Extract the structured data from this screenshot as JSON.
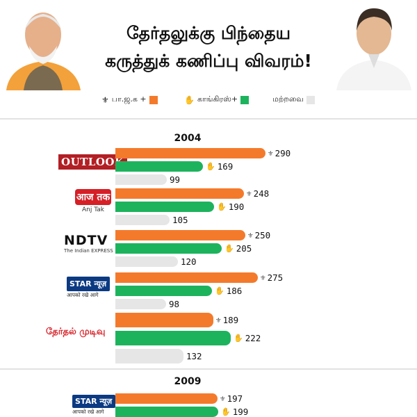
{
  "header": {
    "title_line1": "தேர்தலுக்கு பிந்தைய",
    "title_line2": "கருத்துக் கணிப்பு விவரம்!"
  },
  "legend": [
    {
      "label": "பா.ஜ.க +",
      "color": "#f47a2b",
      "icon": "lotus-icon"
    },
    {
      "label": "காங்கிரஸ்+",
      "color": "#1db35d",
      "icon": "hand-icon"
    },
    {
      "label": "மற்றவை",
      "color": "#e6e6e6",
      "icon": ""
    }
  ],
  "logos": {
    "outlook": "OUTLOOK",
    "aajtak": "आज तक",
    "aajtak_caption": "Anj Tak",
    "ndtv": "NDTV",
    "ndtv_caption": "The Indian EXPRESS",
    "star": "STAR न्यूज़",
    "star_caption": "आपको रखे आगे",
    "result": "தேர்தல் முடிவு"
  },
  "chart_data": [
    {
      "type": "bar",
      "title": "2004",
      "series_colors": [
        "#f47a2b",
        "#1db35d",
        "#e6e6e6"
      ],
      "groups": [
        {
          "source": "OUTLOOK",
          "values": [
            290,
            169,
            99
          ]
        },
        {
          "source": "Aaj Tak",
          "values": [
            248,
            190,
            105
          ]
        },
        {
          "source": "NDTV",
          "values": [
            250,
            205,
            120
          ]
        },
        {
          "source": "STAR News",
          "values": [
            275,
            186,
            98
          ]
        },
        {
          "source": "தேர்தல் முடிவு",
          "values": [
            189,
            222,
            132
          ]
        }
      ]
    },
    {
      "type": "bar",
      "title": "2009",
      "series_colors": [
        "#f47a2b",
        "#1db35d",
        "#e6e6e6"
      ],
      "groups": [
        {
          "source": "STAR News",
          "values": [
            197,
            199
          ]
        }
      ]
    }
  ]
}
